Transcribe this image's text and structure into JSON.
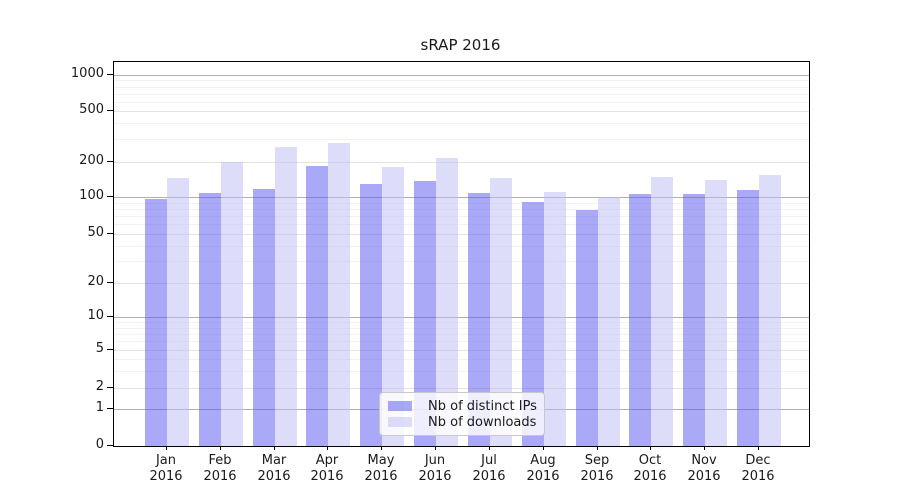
{
  "chart_data": {
    "type": "bar",
    "title": "sRAP 2016",
    "categories": [
      "Jan",
      "Feb",
      "Mar",
      "Apr",
      "May",
      "Jun",
      "Jul",
      "Aug",
      "Sep",
      "Oct",
      "Nov",
      "Dec"
    ],
    "category_year": "2016",
    "series": [
      {
        "name": "Nb of distinct IPs",
        "color": "rgba(83,83,239,0.5)",
        "values": [
          96,
          108,
          118,
          183,
          130,
          138,
          108,
          91,
          79,
          107,
          106,
          116
        ]
      },
      {
        "name": "Nb of downloads",
        "color": "rgba(187,187,245,0.5)",
        "values": [
          147,
          200,
          260,
          280,
          180,
          215,
          146,
          110,
          101,
          149,
          141,
          155
        ]
      }
    ],
    "yaxis": {
      "scale": "symlog",
      "ticks": [
        0,
        1,
        2,
        5,
        10,
        20,
        50,
        100,
        200,
        500,
        1000
      ],
      "power_ticks": [
        1,
        10,
        100,
        1000
      ],
      "minor_ticks": [
        3,
        4,
        6,
        7,
        8,
        9,
        30,
        40,
        60,
        70,
        80,
        90,
        300,
        400,
        600,
        700,
        800,
        900
      ],
      "anchors": [
        [
          0,
          0
        ],
        [
          1,
          0.0964
        ],
        [
          2,
          0.151
        ],
        [
          5,
          0.25
        ],
        [
          10,
          0.3359
        ],
        [
          20,
          0.4245
        ],
        [
          50,
          0.5521
        ],
        [
          100,
          0.6484
        ],
        [
          200,
          0.7396
        ],
        [
          500,
          0.8724
        ],
        [
          1000,
          0.9661
        ]
      ]
    },
    "xaxis": {
      "gridlines": false
    },
    "legend": {
      "position": "lower-center"
    },
    "colors": {
      "grid_major": "#b0b0b0",
      "grid_mid": "#e4e4e4",
      "grid_minor": "#f2f2f2",
      "spine": "#000000",
      "text": "#1a1a1a",
      "legend_bg": "rgba(255,255,255,0.8)",
      "legend_border": "#c9c9c9"
    }
  }
}
